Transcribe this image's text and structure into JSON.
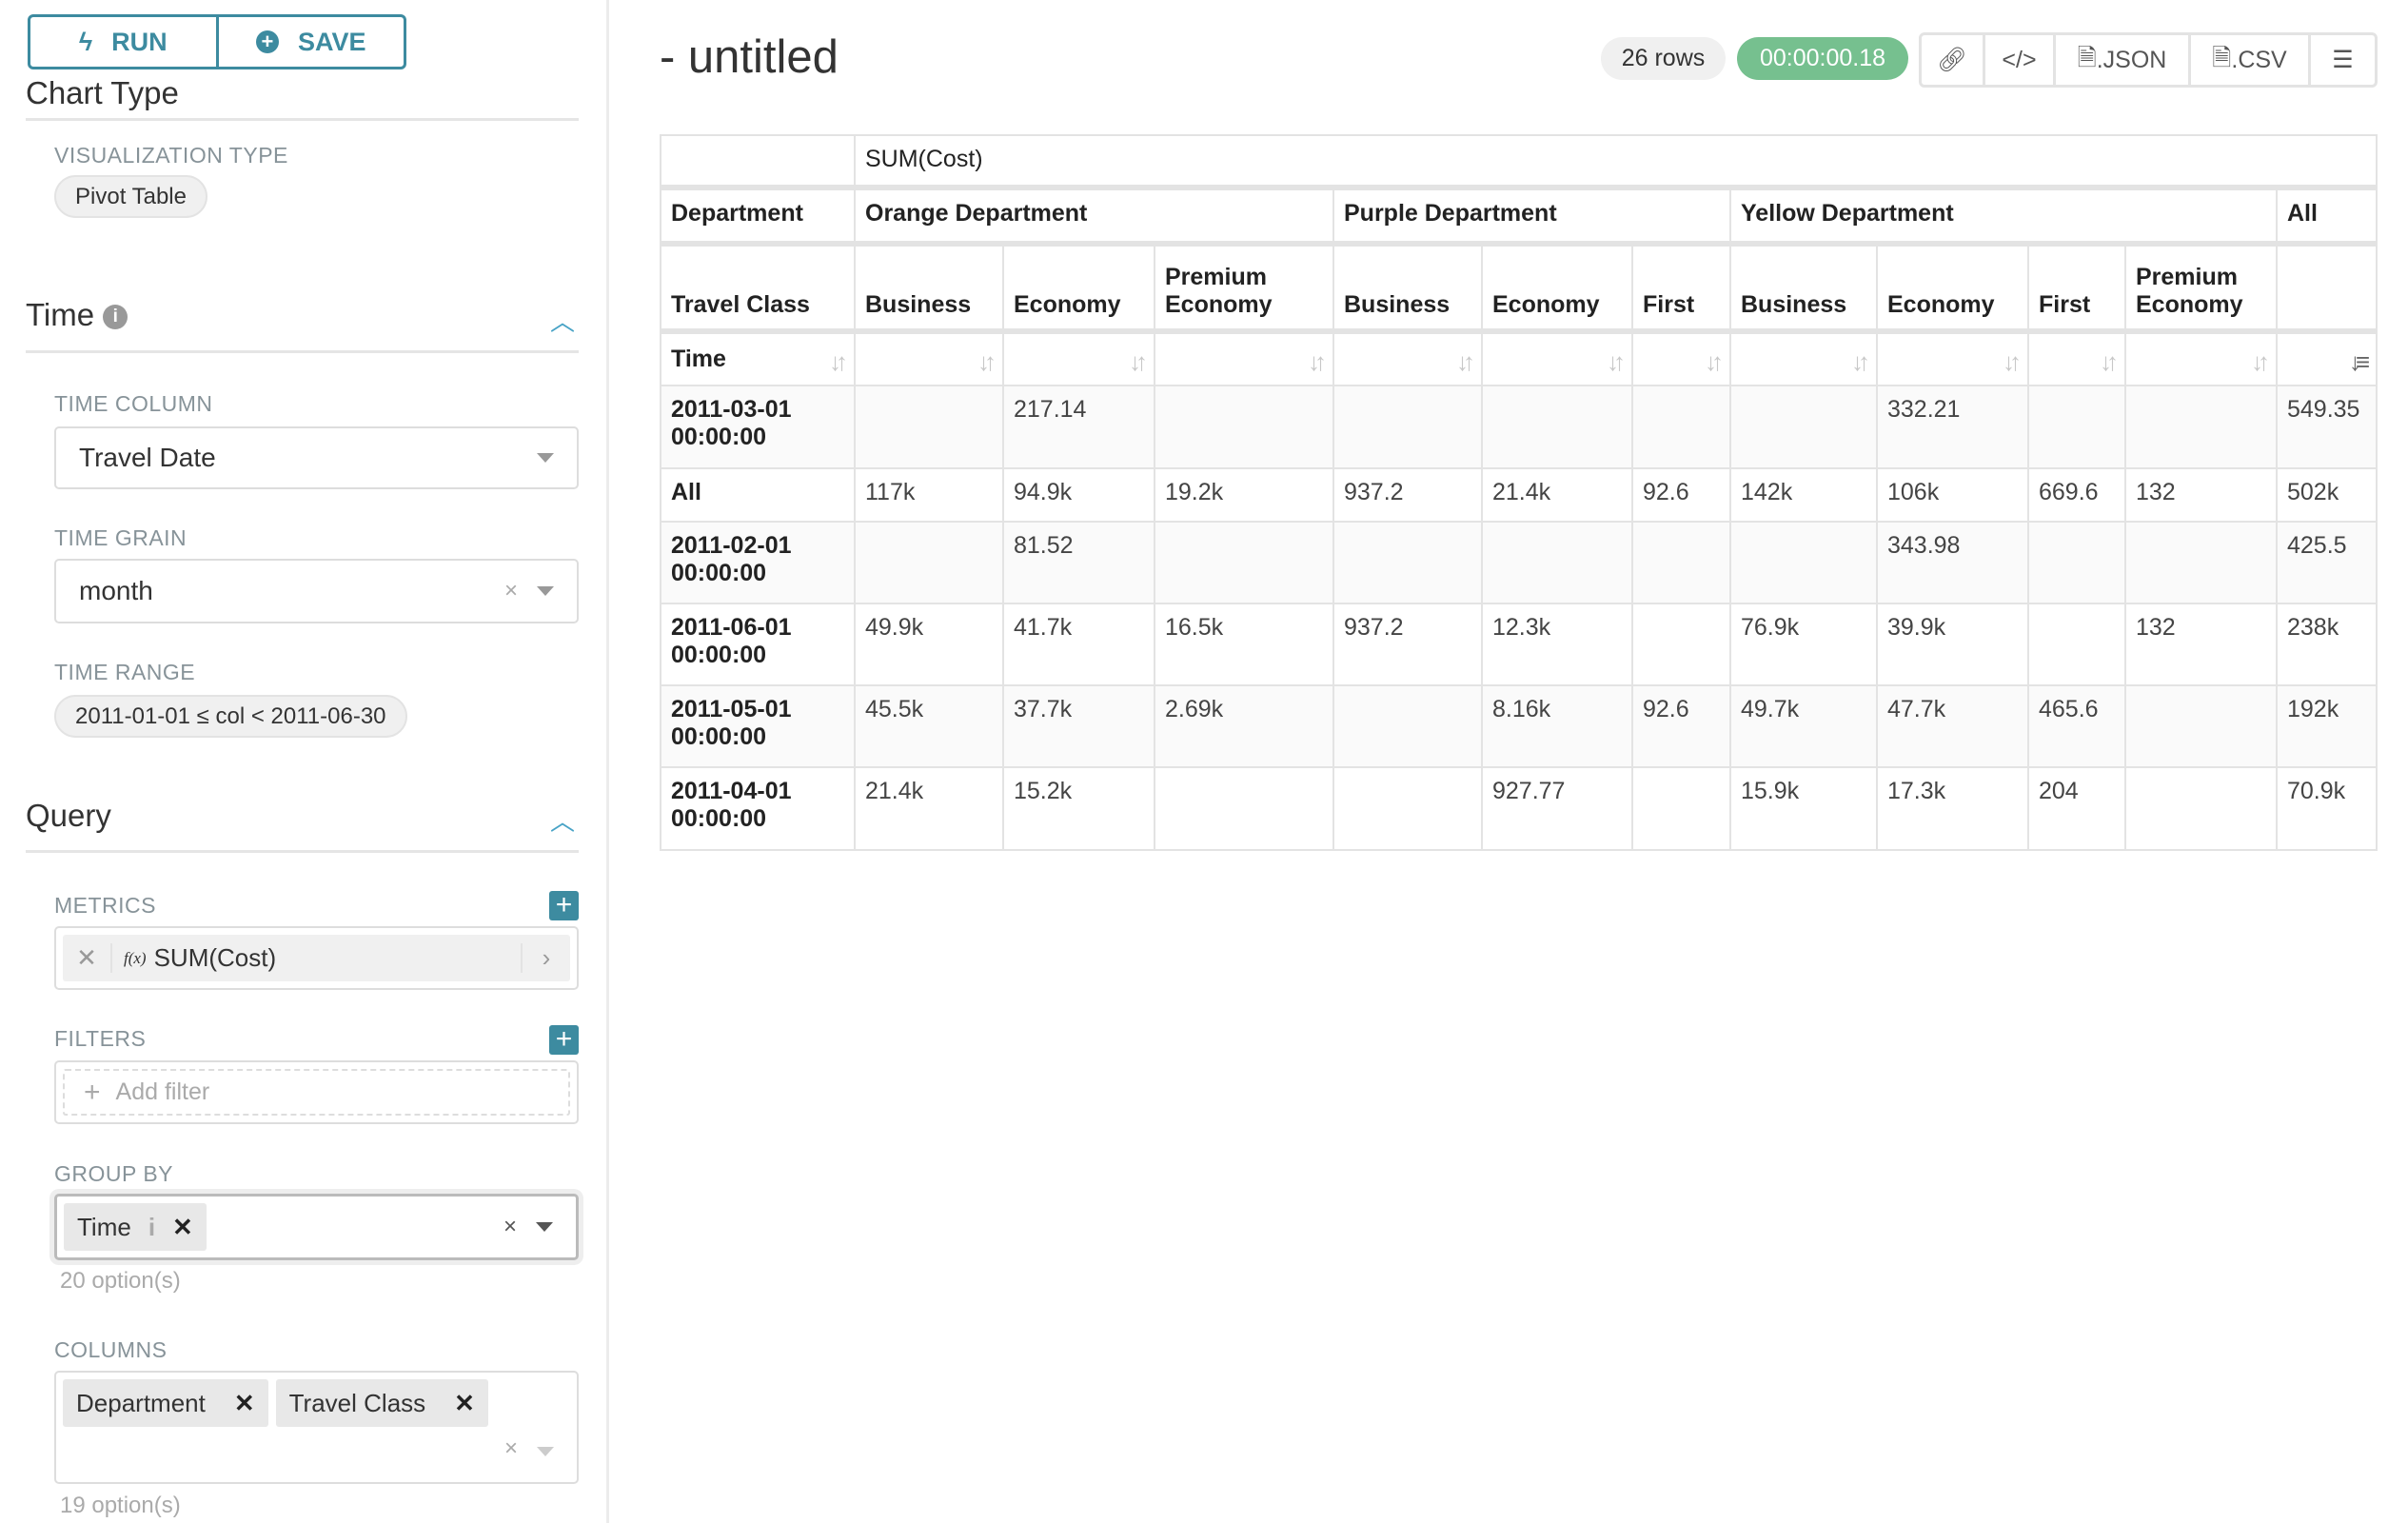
{
  "toolbar": {
    "run_label": "RUN",
    "save_label": "SAVE"
  },
  "sidebar": {
    "chart_type_heading": "Chart Type",
    "visualization_type_label": "VISUALIZATION TYPE",
    "visualization_type_value": "Pivot Table",
    "time_section": "Time",
    "time_column_label": "TIME COLUMN",
    "time_column_value": "Travel Date",
    "time_grain_label": "TIME GRAIN",
    "time_grain_value": "month",
    "time_range_label": "TIME RANGE",
    "time_range_value": "2011-01-01 ≤ col < 2011-06-30",
    "query_section": "Query",
    "metrics_label": "METRICS",
    "metric_value": "SUM(Cost)",
    "metric_fx": "f(x)",
    "filters_label": "FILTERS",
    "filters_placeholder": "Add filter",
    "group_by_label": "GROUP BY",
    "group_by_tag": "Time",
    "group_by_hint": "20 option(s)",
    "columns_label": "COLUMNS",
    "columns_tags": [
      "Department",
      "Travel Class"
    ],
    "columns_hint": "19 option(s)"
  },
  "header": {
    "title": "- untitled",
    "rows_badge": "26 rows",
    "timer": "00:00:00.18",
    "json_label": ".JSON",
    "csv_label": ".CSV"
  },
  "colors": {
    "accent": "#3d8ba0",
    "timer_bg": "#76c08f"
  },
  "table": {
    "metric": "SUM(Cost)",
    "dept_label": "Department",
    "departments": [
      "Orange Department",
      "Purple Department",
      "Yellow Department",
      "All"
    ],
    "class_label": "Travel Class",
    "classes": [
      "Business",
      "Economy",
      "Premium Economy",
      "Business",
      "Economy",
      "First",
      "Business",
      "Economy",
      "First",
      "Premium Economy",
      ""
    ],
    "time_label": "Time",
    "rows": [
      {
        "label": "2011-03-01 00:00:00",
        "values": [
          "",
          "217.14",
          "",
          "",
          "",
          "",
          "",
          "332.21",
          "",
          "",
          "549.35"
        ]
      },
      {
        "label": "All",
        "values": [
          "117k",
          "94.9k",
          "19.2k",
          "937.2",
          "21.4k",
          "92.6",
          "142k",
          "106k",
          "669.6",
          "132",
          "502k"
        ]
      },
      {
        "label": "2011-02-01 00:00:00",
        "values": [
          "",
          "81.52",
          "",
          "",
          "",
          "",
          "",
          "343.98",
          "",
          "",
          "425.5"
        ]
      },
      {
        "label": "2011-06-01 00:00:00",
        "values": [
          "49.9k",
          "41.7k",
          "16.5k",
          "937.2",
          "12.3k",
          "",
          "76.9k",
          "39.9k",
          "",
          "132",
          "238k"
        ]
      },
      {
        "label": "2011-05-01 00:00:00",
        "values": [
          "45.5k",
          "37.7k",
          "2.69k",
          "",
          "8.16k",
          "92.6",
          "49.7k",
          "47.7k",
          "465.6",
          "",
          "192k"
        ]
      },
      {
        "label": "2011-04-01 00:00:00",
        "values": [
          "21.4k",
          "15.2k",
          "",
          "",
          "927.77",
          "",
          "15.9k",
          "17.3k",
          "204",
          "",
          "70.9k"
        ]
      }
    ]
  }
}
